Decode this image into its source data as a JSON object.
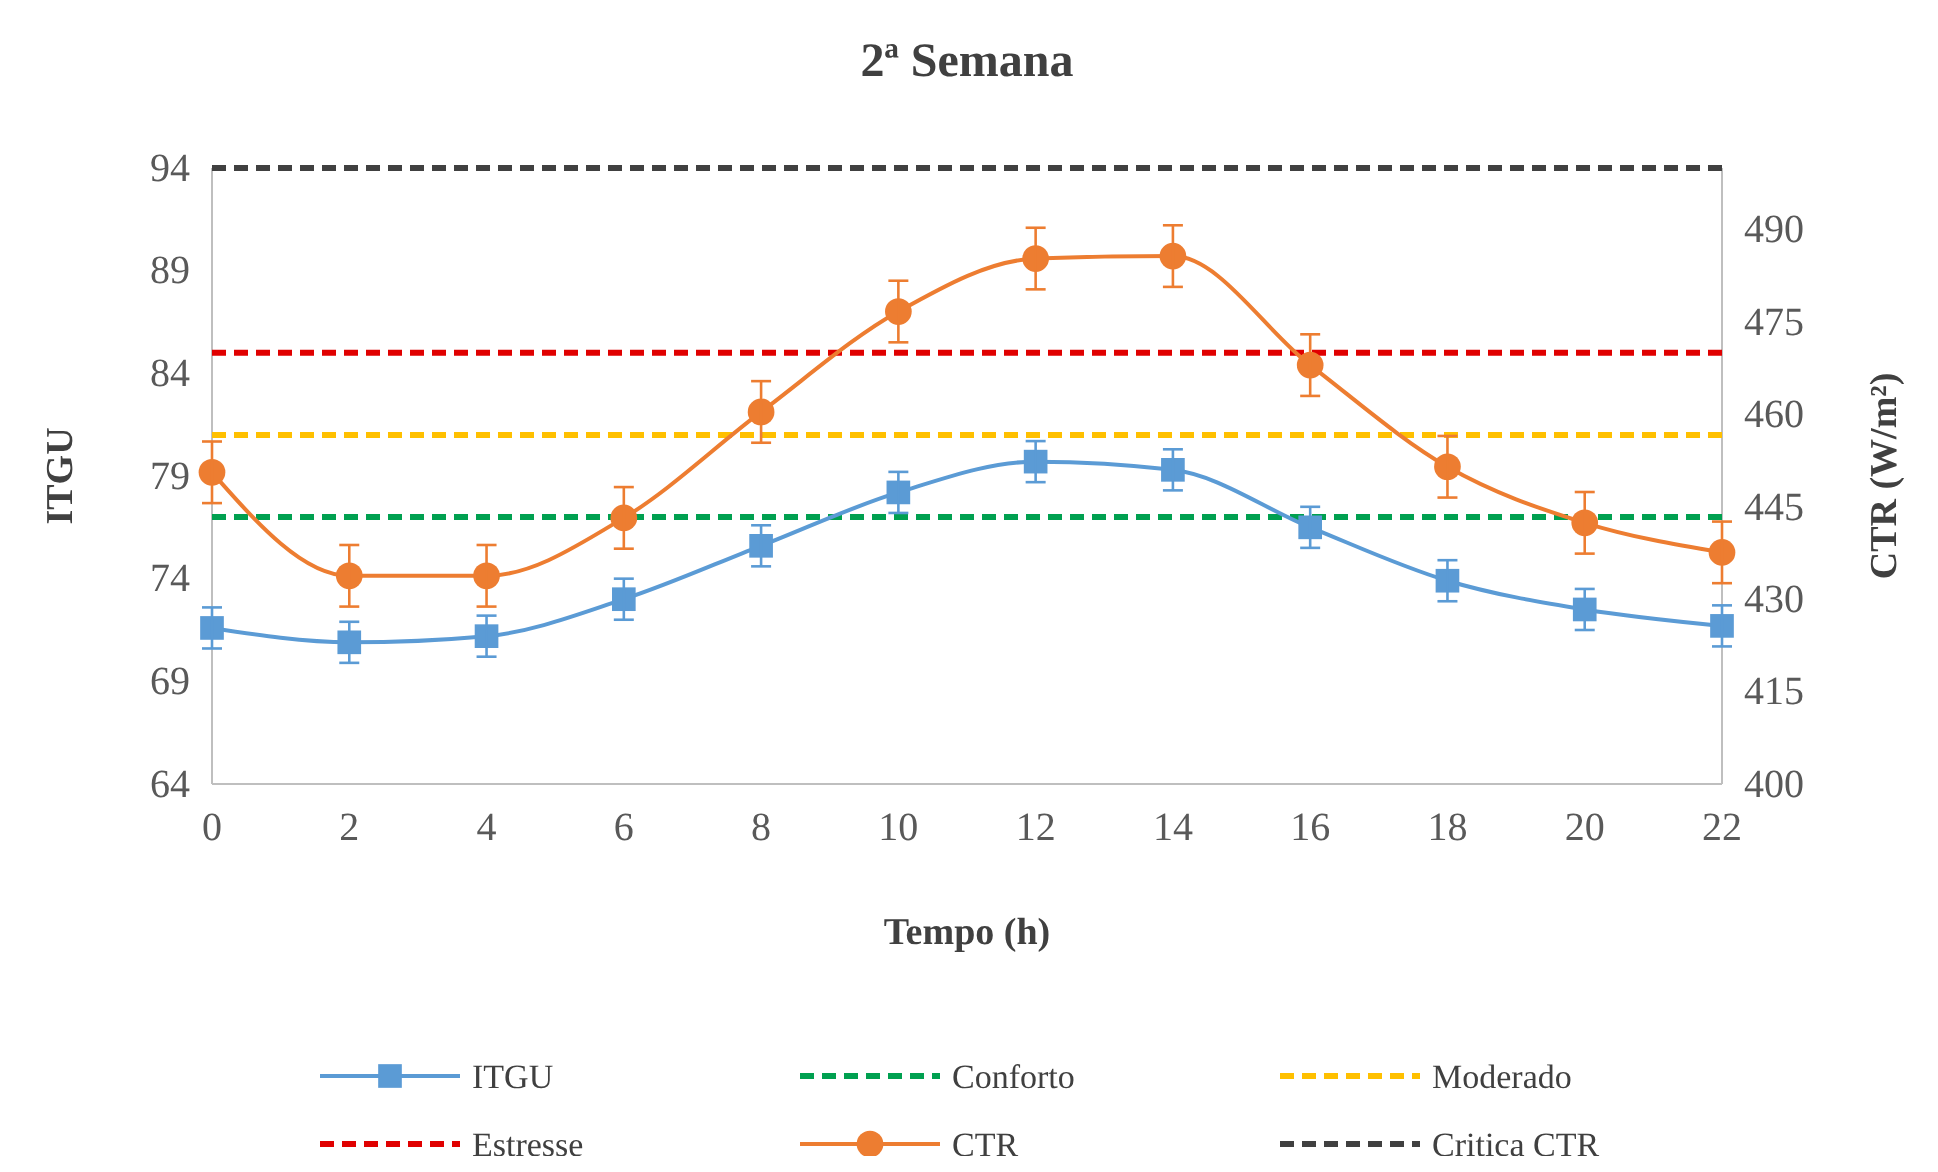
{
  "chart_data": {
    "type": "line",
    "title": "2ª Semana",
    "xlabel": "Tempo (h)",
    "ylabel": "ITGU",
    "y2label": "CTR (W/m²)",
    "x": [
      0,
      2,
      4,
      6,
      8,
      10,
      12,
      14,
      16,
      18,
      20,
      22
    ],
    "xlim": [
      0,
      22
    ],
    "xticks": [
      0,
      2,
      4,
      6,
      8,
      10,
      12,
      14,
      16,
      18,
      20,
      22
    ],
    "ylim": [
      64,
      94
    ],
    "yticks": [
      64,
      69,
      74,
      79,
      84,
      89,
      94
    ],
    "y2lim": [
      400,
      500
    ],
    "y2ticks": [
      400,
      415,
      430,
      445,
      460,
      475,
      490
    ],
    "series": [
      {
        "name": "ITGU",
        "color": "#5b9bd5",
        "marker": "square",
        "values": [
          71.6,
          70.9,
          71.2,
          73.0,
          75.6,
          78.2,
          79.7,
          79.3,
          76.5,
          73.9,
          72.5,
          71.7
        ],
        "errors": [
          1,
          1,
          1,
          1,
          1,
          1,
          1,
          1,
          1,
          1,
          1,
          1
        ]
      },
      {
        "name": "CTR",
        "color": "#ed7d31",
        "marker": "circle",
        "axis": "y2",
        "values": [
          450.6,
          433.8,
          433.8,
          443.2,
          460.4,
          476.7,
          485.3,
          485.7,
          468.0,
          451.5,
          442.4,
          437.6
        ],
        "errors": [
          5,
          5,
          5,
          5,
          5,
          5,
          5,
          5,
          5,
          5,
          5,
          5
        ]
      }
    ],
    "ref_lines": [
      {
        "axis": "y",
        "value": 77,
        "label": "Conforto",
        "color": "#00a050",
        "line_style": "dashed"
      },
      {
        "axis": "y",
        "value": 81,
        "label": "Moderado",
        "color": "#ffc000",
        "line_style": "dashed"
      },
      {
        "axis": "y",
        "value": 85,
        "label": "Estresse",
        "color": "#e00000",
        "line_style": "dashed"
      },
      {
        "axis": "y2",
        "value": 500,
        "label": "Critica CTR",
        "color": "#404040",
        "line_style": "dashed"
      }
    ],
    "grid": false,
    "legend": "bottom",
    "line_style": "solid"
  }
}
